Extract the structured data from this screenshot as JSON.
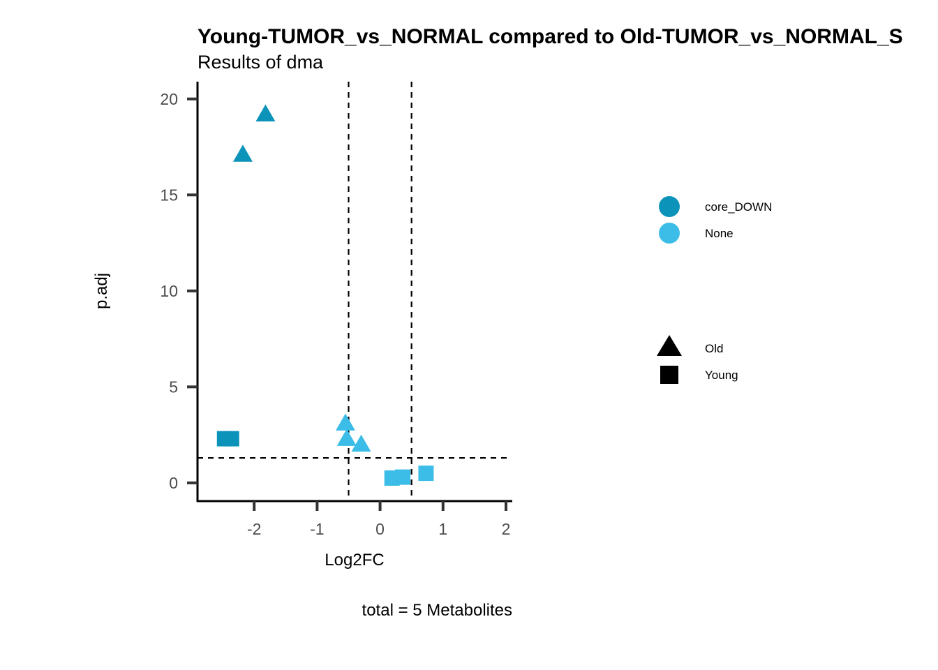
{
  "chart_data": {
    "type": "scatter",
    "title": "Young-TUMOR_vs_NORMAL compared to Old-TUMOR_vs_NORMAL_S",
    "subtitle": "Results of dma",
    "xlabel": "Log2FC",
    "ylabel": "p.adj",
    "caption": "total = 5 Metabolites",
    "xlim": [
      -2.9,
      2.1
    ],
    "ylim": [
      -0.95,
      20.9
    ],
    "x_ticks": [
      -2,
      -1,
      0,
      1,
      2
    ],
    "x_tick_labels": [
      "-2",
      "-1",
      "0",
      "1",
      "2"
    ],
    "y_ticks": [
      0,
      5,
      10,
      15,
      20
    ],
    "y_tick_labels": [
      "0",
      "5",
      "10",
      "15",
      "20"
    ],
    "grid": false,
    "vlines": [
      -0.5,
      0.5
    ],
    "hlines": [
      1.3
    ],
    "reference_line_style": "dashed",
    "colors": {
      "core_DOWN": "#0c93b9",
      "None": "#3cbde8",
      "axis": "#000000",
      "ticks": "#333333"
    },
    "legend_color": {
      "placement": "right",
      "items": [
        {
          "label": "core_DOWN",
          "color_key": "core_DOWN"
        },
        {
          "label": "None",
          "color_key": "None"
        }
      ]
    },
    "legend_shape": {
      "placement": "right",
      "items": [
        {
          "label": "Old",
          "shape": "triangle"
        },
        {
          "label": "Young",
          "shape": "square"
        }
      ]
    },
    "points": [
      {
        "x": -1.82,
        "y": 19.2,
        "group": "core_DOWN",
        "comparison": "Old"
      },
      {
        "x": -2.18,
        "y": 17.1,
        "group": "core_DOWN",
        "comparison": "Old"
      },
      {
        "x": -2.47,
        "y": 2.3,
        "group": "core_DOWN",
        "comparison": "Young"
      },
      {
        "x": -2.36,
        "y": 2.3,
        "group": "core_DOWN",
        "comparison": "Young"
      },
      {
        "x": -0.55,
        "y": 3.1,
        "group": "None",
        "comparison": "Old"
      },
      {
        "x": -0.53,
        "y": 2.3,
        "group": "None",
        "comparison": "Old"
      },
      {
        "x": -0.3,
        "y": 2.0,
        "group": "None",
        "comparison": "Old"
      },
      {
        "x": 0.19,
        "y": 0.25,
        "group": "None",
        "comparison": "Young"
      },
      {
        "x": 0.36,
        "y": 0.3,
        "group": "None",
        "comparison": "Young"
      },
      {
        "x": 0.73,
        "y": 0.5,
        "group": "None",
        "comparison": "Young"
      }
    ]
  }
}
